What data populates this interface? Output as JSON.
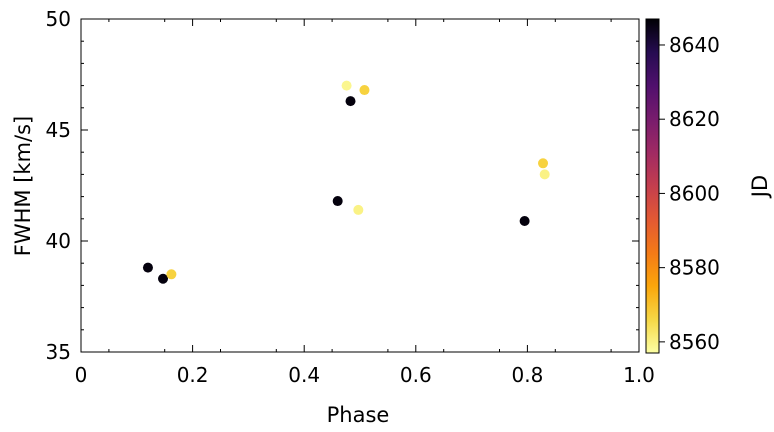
{
  "chart_data": {
    "type": "scatter",
    "xlabel": "Phase",
    "ylabel": "FWHM [km/s]",
    "xlim": [
      0,
      1.0
    ],
    "ylim": [
      35,
      50
    ],
    "x_ticks": [
      "0",
      "0.2",
      "0.4",
      "0.6",
      "0.8",
      "1.0"
    ],
    "y_ticks": [
      "35",
      "40",
      "45",
      "50"
    ],
    "grid": false,
    "colorbar": {
      "label": "JD",
      "range": [
        8557,
        8647
      ],
      "ticks": [
        "8560",
        "8580",
        "8600",
        "8620",
        "8640"
      ],
      "colormap": "inferno"
    },
    "points": [
      {
        "x": 0.12,
        "y": 38.8,
        "jd": 8646
      },
      {
        "x": 0.147,
        "y": 38.3,
        "jd": 8646
      },
      {
        "x": 0.162,
        "y": 38.5,
        "jd": 8567
      },
      {
        "x": 0.46,
        "y": 41.8,
        "jd": 8646
      },
      {
        "x": 0.476,
        "y": 47.0,
        "jd": 8559
      },
      {
        "x": 0.483,
        "y": 46.3,
        "jd": 8646
      },
      {
        "x": 0.497,
        "y": 41.4,
        "jd": 8560
      },
      {
        "x": 0.508,
        "y": 46.8,
        "jd": 8567
      },
      {
        "x": 0.795,
        "y": 40.9,
        "jd": 8646
      },
      {
        "x": 0.828,
        "y": 43.5,
        "jd": 8567
      },
      {
        "x": 0.831,
        "y": 43.0,
        "jd": 8560
      }
    ]
  }
}
